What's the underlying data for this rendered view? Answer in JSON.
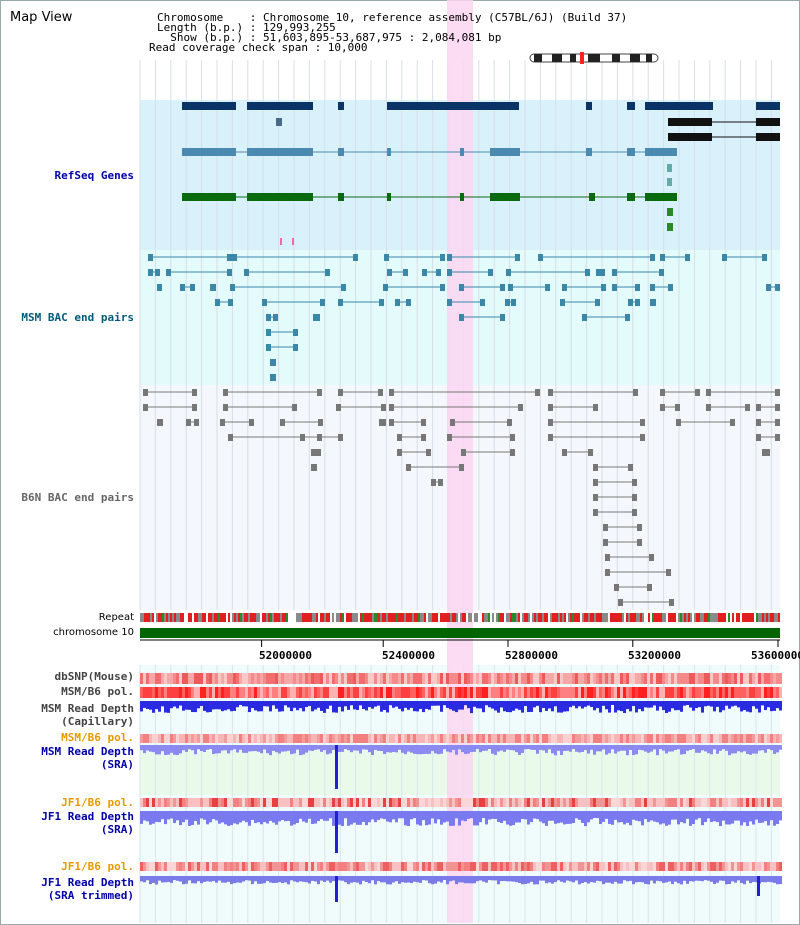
{
  "title": "Map View",
  "header": {
    "line1": "Chromosome    : Chromosome 10, reference assembly (C57BL/6J) (Build 37)",
    "line2": "Length (b.p.) : 129,993,255",
    "line3": "  Show (b.p.) : 51,603,895-53,687,975 : 2,084,081 bp",
    "line4": "Read coverage check span : 10,000"
  },
  "tracks": {
    "refseq": "RefSeq Genes",
    "msm_bac": "MSM BAC end pairs",
    "b6n_bac": "B6N BAC end pairs",
    "repeat": "Repeat",
    "chromosome": "chromosome 10",
    "dbsnp": "dbSNP(Mouse)",
    "msm_b6_pol": "MSM/B6 pol.",
    "msm_depth_cap": "MSM Read Depth\n(Capillary)",
    "msm_b6_pol_2": "MSM/B6 pol.",
    "msm_depth_sra": "MSM Read Depth\n(SRA)",
    "jf1_b6_pol": "JF1/B6 pol.",
    "jf1_depth_sra": "JF1 Read Depth\n(SRA)",
    "jf1_b6_pol_2": "JF1/B6 pol.",
    "jf1_depth_trim": "JF1 Read Depth\n(SRA trimmed)"
  },
  "axis_ticks": [
    "52000000",
    "52400000",
    "52800000",
    "53200000",
    "53600000"
  ],
  "colors": {
    "refseq_bg": "#d9f1fb",
    "msm_bg": "#e3fbfb",
    "b6n_bg": "#f4f8fc",
    "highlight": "#fbd6f1",
    "chrom_bar": "#006400",
    "track_label_blue": "#0000aa",
    "track_label_teal": "#005c7a",
    "track_label_orange": "#e69a00"
  }
}
